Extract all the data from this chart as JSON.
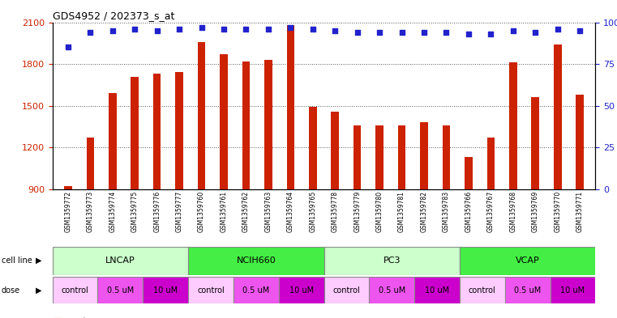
{
  "title": "GDS4952 / 202373_s_at",
  "samples": [
    "GSM1359772",
    "GSM1359773",
    "GSM1359774",
    "GSM1359775",
    "GSM1359776",
    "GSM1359777",
    "GSM1359760",
    "GSM1359761",
    "GSM1359762",
    "GSM1359763",
    "GSM1359764",
    "GSM1359765",
    "GSM1359778",
    "GSM1359779",
    "GSM1359780",
    "GSM1359781",
    "GSM1359782",
    "GSM1359783",
    "GSM1359766",
    "GSM1359767",
    "GSM1359768",
    "GSM1359769",
    "GSM1359770",
    "GSM1359771"
  ],
  "counts": [
    920,
    1270,
    1590,
    1710,
    1730,
    1740,
    1960,
    1870,
    1820,
    1830,
    2080,
    1490,
    1460,
    1360,
    1360,
    1360,
    1380,
    1360,
    1130,
    1270,
    1810,
    1560,
    1940,
    1580
  ],
  "percentiles": [
    85,
    94,
    95,
    96,
    95,
    96,
    97,
    96,
    96,
    96,
    97,
    96,
    95,
    94,
    94,
    94,
    94,
    94,
    93,
    93,
    95,
    94,
    96,
    95
  ],
  "cell_lines": [
    {
      "name": "LNCAP",
      "start": 0,
      "end": 6,
      "color": "#ccffcc"
    },
    {
      "name": "NCIH660",
      "start": 6,
      "end": 12,
      "color": "#44ee44"
    },
    {
      "name": "PC3",
      "start": 12,
      "end": 18,
      "color": "#ccffcc"
    },
    {
      "name": "VCAP",
      "start": 18,
      "end": 24,
      "color": "#44ee44"
    }
  ],
  "dose_segments": [
    {
      "label": "control",
      "start": 0,
      "end": 2,
      "color": "#ffccff"
    },
    {
      "label": "0.5 uM",
      "start": 2,
      "end": 4,
      "color": "#ee55ee"
    },
    {
      "label": "10 uM",
      "start": 4,
      "end": 6,
      "color": "#cc00cc"
    },
    {
      "label": "control",
      "start": 6,
      "end": 8,
      "color": "#ffccff"
    },
    {
      "label": "0.5 uM",
      "start": 8,
      "end": 10,
      "color": "#ee55ee"
    },
    {
      "label": "10 uM",
      "start": 10,
      "end": 12,
      "color": "#cc00cc"
    },
    {
      "label": "control",
      "start": 12,
      "end": 14,
      "color": "#ffccff"
    },
    {
      "label": "0.5 uM",
      "start": 14,
      "end": 16,
      "color": "#ee55ee"
    },
    {
      "label": "10 uM",
      "start": 16,
      "end": 18,
      "color": "#cc00cc"
    },
    {
      "label": "control",
      "start": 18,
      "end": 20,
      "color": "#ffccff"
    },
    {
      "label": "0.5 uM",
      "start": 20,
      "end": 22,
      "color": "#ee55ee"
    },
    {
      "label": "10 uM",
      "start": 22,
      "end": 24,
      "color": "#cc00cc"
    }
  ],
  "ylim_left": [
    900,
    2100
  ],
  "ylim_right": [
    0,
    100
  ],
  "yticks_left": [
    900,
    1200,
    1500,
    1800,
    2100
  ],
  "yticks_right": [
    0,
    25,
    50,
    75,
    100
  ],
  "bar_color": "#cc2200",
  "dot_color": "#2222cc",
  "bar_width": 0.35,
  "bg_color": "#ffffff",
  "grid_color": "#555555",
  "tick_color_left": "#cc2200",
  "tick_color_right": "#2222cc",
  "xticklabel_bg": "#cccccc",
  "plot_bg": "#ffffff"
}
